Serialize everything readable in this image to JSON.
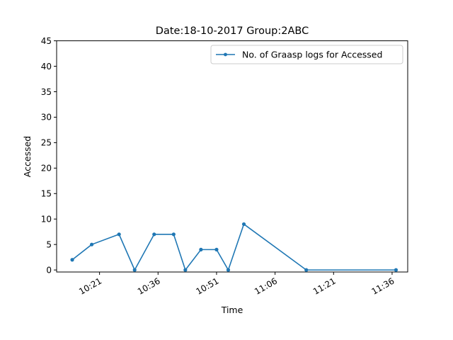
{
  "chart_data": {
    "type": "line",
    "title": "Date:18-10-2017  Group:2ABC",
    "xlabel": "Time",
    "ylabel": "Accessed",
    "xlim": [
      "10:10",
      "11:40"
    ],
    "ylim": [
      -0.4,
      45
    ],
    "y_ticks": [
      "0",
      "5",
      "10",
      "15",
      "20",
      "25",
      "30",
      "35",
      "40",
      "45"
    ],
    "x_ticks": [
      "10:21",
      "10:36",
      "10:51",
      "11:06",
      "11:21",
      "11:36"
    ],
    "grid": false,
    "legend_position": "top-right",
    "series": [
      {
        "name": "No. of Graasp logs for Accessed",
        "color": "#1f77b4",
        "x": [
          "10:14",
          "10:19",
          "10:26",
          "10:30",
          "10:35",
          "10:40",
          "10:43",
          "10:47",
          "10:51",
          "10:54",
          "10:58",
          "11:14",
          "11:37"
        ],
        "y": [
          2,
          5,
          7,
          0,
          7,
          7,
          0,
          4,
          4,
          0,
          9,
          0,
          0
        ]
      }
    ]
  }
}
